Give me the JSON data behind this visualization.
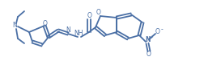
{
  "bg_color": "#ffffff",
  "line_color": "#4a6fa5",
  "line_width": 1.3,
  "figsize": [
    2.52,
    0.76
  ],
  "dpi": 100,
  "xlim": [
    0,
    252
  ],
  "ylim": [
    0,
    76
  ]
}
